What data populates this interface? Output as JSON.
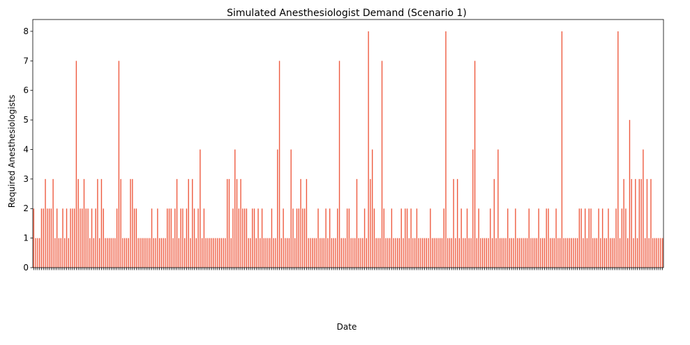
{
  "chart_data": {
    "type": "bar",
    "title": "Simulated Anesthesiologist Demand (Scenario 1)",
    "xlabel": "Date",
    "ylabel": "Required Anesthesiologists",
    "ylim": [
      0,
      8.4
    ],
    "yticks": [
      0,
      1,
      2,
      3,
      4,
      5,
      6,
      7,
      8
    ],
    "grid": false,
    "legend": "none",
    "bar_color": "#ee5a3f",
    "x_tick_labels": "dense rotated date labels (illegible)",
    "series": [
      {
        "values": [
          2,
          1,
          1,
          1,
          2,
          2,
          3,
          2,
          2,
          2,
          3,
          1,
          2,
          1,
          1,
          2,
          1,
          2,
          1,
          2,
          2,
          2,
          7,
          3,
          2,
          2,
          3,
          2,
          2,
          1,
          2,
          1,
          2,
          3,
          1,
          3,
          2,
          1,
          1,
          1,
          1,
          1,
          1,
          2,
          7,
          3,
          1,
          1,
          1,
          1,
          3,
          3,
          2,
          2,
          1,
          1,
          1,
          1,
          1,
          1,
          1,
          2,
          1,
          1,
          2,
          1,
          1,
          1,
          1,
          2,
          2,
          2,
          1,
          2,
          3,
          1,
          2,
          2,
          1,
          2,
          3,
          1,
          3,
          2,
          1,
          2,
          4,
          1,
          2,
          1,
          1,
          1,
          1,
          1,
          1,
          1,
          1,
          1,
          1,
          1,
          3,
          3,
          1,
          2,
          4,
          3,
          2,
          3,
          2,
          2,
          2,
          1,
          1,
          2,
          2,
          1,
          2,
          1,
          2,
          1,
          1,
          1,
          1,
          2,
          1,
          1,
          4,
          7,
          1,
          2,
          1,
          1,
          1,
          4,
          2,
          1,
          2,
          2,
          3,
          2,
          2,
          3,
          1,
          1,
          1,
          1,
          1,
          2,
          1,
          1,
          1,
          2,
          1,
          2,
          1,
          1,
          1,
          2,
          7,
          1,
          1,
          1,
          2,
          2,
          1,
          1,
          1,
          3,
          1,
          1,
          1,
          2,
          1,
          8,
          3,
          4,
          2,
          1,
          1,
          1,
          7,
          2,
          1,
          1,
          1,
          2,
          1,
          1,
          1,
          1,
          2,
          1,
          2,
          2,
          1,
          2,
          1,
          1,
          2,
          1,
          1,
          1,
          1,
          1,
          1,
          2,
          1,
          1,
          1,
          1,
          1,
          1,
          2,
          8,
          1,
          1,
          1,
          3,
          1,
          3,
          1,
          2,
          1,
          1,
          2,
          1,
          1,
          4,
          7,
          1,
          2,
          1,
          1,
          1,
          1,
          1,
          2,
          1,
          3,
          1,
          4,
          1,
          1,
          1,
          1,
          2,
          1,
          1,
          1,
          2,
          1,
          1,
          1,
          1,
          1,
          1,
          2,
          1,
          1,
          1,
          1,
          2,
          1,
          1,
          1,
          2,
          2,
          1,
          1,
          1,
          2,
          1,
          1,
          8,
          1,
          1,
          1,
          1,
          1,
          1,
          1,
          1,
          2,
          2,
          1,
          2,
          1,
          2,
          2,
          1,
          1,
          1,
          2,
          1,
          2,
          1,
          1,
          2,
          1,
          1,
          1,
          2,
          8,
          1,
          2,
          3,
          2,
          1,
          5,
          3,
          1,
          3,
          1,
          3,
          3,
          4,
          1,
          3,
          1,
          3,
          1,
          1,
          1,
          1,
          1,
          1
        ]
      }
    ]
  }
}
